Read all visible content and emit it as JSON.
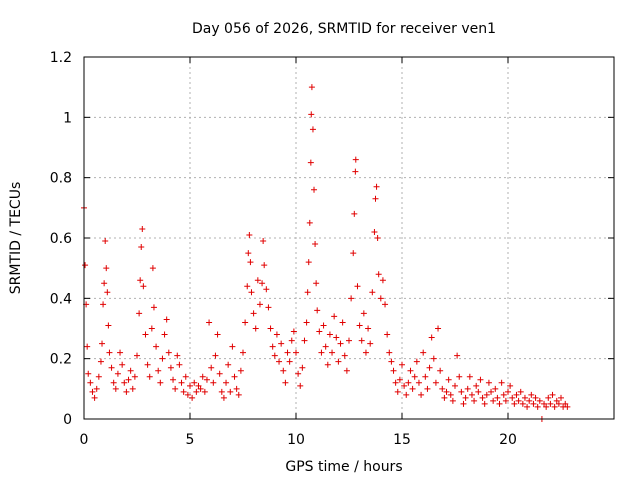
{
  "chart_data": {
    "type": "scatter",
    "title": "Day 056 of 2026, SRMTID for receiver ven1",
    "xlabel": "GPS time / hours",
    "ylabel": "SRMTID / TECUs",
    "xlim": [
      0,
      25
    ],
    "ylim": [
      0,
      1.2
    ],
    "xticks": [
      0,
      5,
      10,
      15,
      20
    ],
    "xtick_labels": [
      "0",
      "5",
      "10",
      "15",
      "20"
    ],
    "yticks": [
      0,
      0.2,
      0.4,
      0.6,
      0.8,
      1,
      1.2
    ],
    "ytick_labels": [
      "0",
      "0.2",
      "0.4",
      "0.6",
      "0.8",
      "1",
      "1.2"
    ],
    "grid": true,
    "marker": "plus",
    "series": [
      {
        "name": "SRMTID",
        "color": "#e00000",
        "points": [
          [
            0.0,
            0.7
          ],
          [
            0.05,
            0.51
          ],
          [
            0.1,
            0.38
          ],
          [
            0.15,
            0.24
          ],
          [
            0.2,
            0.15
          ],
          [
            0.3,
            0.12
          ],
          [
            0.4,
            0.09
          ],
          [
            0.5,
            0.07
          ],
          [
            0.6,
            0.1
          ],
          [
            0.7,
            0.14
          ],
          [
            0.8,
            0.19
          ],
          [
            0.85,
            0.25
          ],
          [
            0.9,
            0.38
          ],
          [
            0.95,
            0.45
          ],
          [
            1.0,
            0.59
          ],
          [
            1.05,
            0.5
          ],
          [
            1.1,
            0.42
          ],
          [
            1.15,
            0.31
          ],
          [
            1.2,
            0.22
          ],
          [
            1.3,
            0.17
          ],
          [
            1.4,
            0.12
          ],
          [
            1.5,
            0.1
          ],
          [
            1.6,
            0.15
          ],
          [
            1.7,
            0.22
          ],
          [
            1.8,
            0.18
          ],
          [
            1.9,
            0.12
          ],
          [
            2.0,
            0.09
          ],
          [
            2.1,
            0.13
          ],
          [
            2.2,
            0.16
          ],
          [
            2.3,
            0.1
          ],
          [
            2.4,
            0.14
          ],
          [
            2.5,
            0.21
          ],
          [
            2.6,
            0.35
          ],
          [
            2.65,
            0.46
          ],
          [
            2.7,
            0.57
          ],
          [
            2.75,
            0.63
          ],
          [
            2.8,
            0.44
          ],
          [
            2.9,
            0.28
          ],
          [
            3.0,
            0.18
          ],
          [
            3.1,
            0.14
          ],
          [
            3.2,
            0.3
          ],
          [
            3.25,
            0.5
          ],
          [
            3.3,
            0.37
          ],
          [
            3.4,
            0.24
          ],
          [
            3.5,
            0.16
          ],
          [
            3.6,
            0.12
          ],
          [
            3.7,
            0.2
          ],
          [
            3.8,
            0.28
          ],
          [
            3.9,
            0.33
          ],
          [
            4.0,
            0.22
          ],
          [
            4.1,
            0.17
          ],
          [
            4.2,
            0.13
          ],
          [
            4.3,
            0.1
          ],
          [
            4.4,
            0.21
          ],
          [
            4.5,
            0.18
          ],
          [
            4.6,
            0.12
          ],
          [
            4.7,
            0.09
          ],
          [
            4.8,
            0.14
          ],
          [
            4.9,
            0.08
          ],
          [
            5.0,
            0.11
          ],
          [
            5.1,
            0.07
          ],
          [
            5.2,
            0.12
          ],
          [
            5.3,
            0.09
          ],
          [
            5.4,
            0.11
          ],
          [
            5.5,
            0.1
          ],
          [
            5.6,
            0.14
          ],
          [
            5.7,
            0.09
          ],
          [
            5.8,
            0.13
          ],
          [
            5.9,
            0.32
          ],
          [
            6.0,
            0.17
          ],
          [
            6.1,
            0.12
          ],
          [
            6.2,
            0.21
          ],
          [
            6.3,
            0.28
          ],
          [
            6.4,
            0.15
          ],
          [
            6.5,
            0.09
          ],
          [
            6.6,
            0.07
          ],
          [
            6.7,
            0.12
          ],
          [
            6.8,
            0.18
          ],
          [
            6.9,
            0.09
          ],
          [
            7.0,
            0.24
          ],
          [
            7.1,
            0.14
          ],
          [
            7.2,
            0.1
          ],
          [
            7.3,
            0.08
          ],
          [
            7.4,
            0.16
          ],
          [
            7.5,
            0.22
          ],
          [
            7.6,
            0.32
          ],
          [
            7.7,
            0.44
          ],
          [
            7.75,
            0.55
          ],
          [
            7.8,
            0.61
          ],
          [
            7.85,
            0.52
          ],
          [
            7.9,
            0.42
          ],
          [
            8.0,
            0.35
          ],
          [
            8.1,
            0.3
          ],
          [
            8.2,
            0.46
          ],
          [
            8.3,
            0.38
          ],
          [
            8.4,
            0.45
          ],
          [
            8.45,
            0.59
          ],
          [
            8.5,
            0.51
          ],
          [
            8.6,
            0.43
          ],
          [
            8.7,
            0.37
          ],
          [
            8.8,
            0.3
          ],
          [
            8.9,
            0.24
          ],
          [
            9.0,
            0.21
          ],
          [
            9.1,
            0.28
          ],
          [
            9.2,
            0.19
          ],
          [
            9.3,
            0.25
          ],
          [
            9.4,
            0.16
          ],
          [
            9.5,
            0.12
          ],
          [
            9.6,
            0.22
          ],
          [
            9.7,
            0.19
          ],
          [
            9.8,
            0.26
          ],
          [
            9.9,
            0.29
          ],
          [
            10.0,
            0.22
          ],
          [
            10.1,
            0.15
          ],
          [
            10.2,
            0.11
          ],
          [
            10.3,
            0.17
          ],
          [
            10.4,
            0.26
          ],
          [
            10.5,
            0.32
          ],
          [
            10.55,
            0.42
          ],
          [
            10.6,
            0.52
          ],
          [
            10.65,
            0.65
          ],
          [
            10.7,
            0.85
          ],
          [
            10.72,
            1.01
          ],
          [
            10.75,
            1.1
          ],
          [
            10.8,
            0.96
          ],
          [
            10.85,
            0.76
          ],
          [
            10.9,
            0.58
          ],
          [
            10.95,
            0.45
          ],
          [
            11.0,
            0.36
          ],
          [
            11.1,
            0.29
          ],
          [
            11.2,
            0.22
          ],
          [
            11.3,
            0.31
          ],
          [
            11.4,
            0.24
          ],
          [
            11.5,
            0.18
          ],
          [
            11.6,
            0.28
          ],
          [
            11.7,
            0.22
          ],
          [
            11.8,
            0.34
          ],
          [
            11.9,
            0.27
          ],
          [
            12.0,
            0.19
          ],
          [
            12.1,
            0.25
          ],
          [
            12.2,
            0.32
          ],
          [
            12.3,
            0.21
          ],
          [
            12.4,
            0.16
          ],
          [
            12.5,
            0.26
          ],
          [
            12.6,
            0.4
          ],
          [
            12.7,
            0.55
          ],
          [
            12.75,
            0.68
          ],
          [
            12.8,
            0.82
          ],
          [
            12.82,
            0.86
          ],
          [
            12.9,
            0.44
          ],
          [
            13.0,
            0.31
          ],
          [
            13.1,
            0.26
          ],
          [
            13.2,
            0.35
          ],
          [
            13.3,
            0.22
          ],
          [
            13.4,
            0.3
          ],
          [
            13.5,
            0.25
          ],
          [
            13.6,
            0.42
          ],
          [
            13.7,
            0.62
          ],
          [
            13.75,
            0.73
          ],
          [
            13.8,
            0.77
          ],
          [
            13.85,
            0.6
          ],
          [
            13.9,
            0.48
          ],
          [
            14.0,
            0.4
          ],
          [
            14.1,
            0.46
          ],
          [
            14.2,
            0.38
          ],
          [
            14.3,
            0.28
          ],
          [
            14.4,
            0.22
          ],
          [
            14.5,
            0.19
          ],
          [
            14.6,
            0.16
          ],
          [
            14.7,
            0.12
          ],
          [
            14.8,
            0.09
          ],
          [
            14.9,
            0.13
          ],
          [
            15.0,
            0.18
          ],
          [
            15.1,
            0.11
          ],
          [
            15.2,
            0.08
          ],
          [
            15.3,
            0.12
          ],
          [
            15.4,
            0.16
          ],
          [
            15.5,
            0.1
          ],
          [
            15.6,
            0.14
          ],
          [
            15.7,
            0.19
          ],
          [
            15.8,
            0.12
          ],
          [
            15.9,
            0.08
          ],
          [
            16.0,
            0.22
          ],
          [
            16.1,
            0.14
          ],
          [
            16.2,
            0.1
          ],
          [
            16.3,
            0.17
          ],
          [
            16.4,
            0.27
          ],
          [
            16.5,
            0.2
          ],
          [
            16.6,
            0.12
          ],
          [
            16.7,
            0.3
          ],
          [
            16.8,
            0.16
          ],
          [
            16.9,
            0.1
          ],
          [
            17.0,
            0.07
          ],
          [
            17.1,
            0.09
          ],
          [
            17.2,
            0.13
          ],
          [
            17.3,
            0.08
          ],
          [
            17.4,
            0.06
          ],
          [
            17.5,
            0.11
          ],
          [
            17.6,
            0.21
          ],
          [
            17.7,
            0.14
          ],
          [
            17.8,
            0.09
          ],
          [
            17.9,
            0.05
          ],
          [
            18.0,
            0.07
          ],
          [
            18.1,
            0.1
          ],
          [
            18.2,
            0.14
          ],
          [
            18.3,
            0.08
          ],
          [
            18.4,
            0.06
          ],
          [
            18.5,
            0.11
          ],
          [
            18.6,
            0.09
          ],
          [
            18.7,
            0.13
          ],
          [
            18.8,
            0.07
          ],
          [
            18.9,
            0.05
          ],
          [
            19.0,
            0.08
          ],
          [
            19.1,
            0.12
          ],
          [
            19.2,
            0.09
          ],
          [
            19.3,
            0.06
          ],
          [
            19.4,
            0.1
          ],
          [
            19.5,
            0.07
          ],
          [
            19.6,
            0.05
          ],
          [
            19.7,
            0.12
          ],
          [
            19.8,
            0.08
          ],
          [
            19.9,
            0.06
          ],
          [
            20.0,
            0.09
          ],
          [
            20.1,
            0.11
          ],
          [
            20.2,
            0.07
          ],
          [
            20.3,
            0.05
          ],
          [
            20.4,
            0.08
          ],
          [
            20.5,
            0.06
          ],
          [
            20.6,
            0.09
          ],
          [
            20.7,
            0.05
          ],
          [
            20.8,
            0.07
          ],
          [
            20.9,
            0.04
          ],
          [
            21.0,
            0.06
          ],
          [
            21.1,
            0.08
          ],
          [
            21.2,
            0.05
          ],
          [
            21.3,
            0.07
          ],
          [
            21.4,
            0.04
          ],
          [
            21.5,
            0.06
          ],
          [
            21.6,
            0.0
          ],
          [
            21.7,
            0.05
          ],
          [
            21.8,
            0.04
          ],
          [
            21.9,
            0.07
          ],
          [
            22.0,
            0.05
          ],
          [
            22.1,
            0.08
          ],
          [
            22.2,
            0.04
          ],
          [
            22.3,
            0.06
          ],
          [
            22.4,
            0.05
          ],
          [
            22.5,
            0.07
          ],
          [
            22.6,
            0.04
          ],
          [
            22.7,
            0.05
          ],
          [
            22.8,
            0.04
          ]
        ]
      }
    ]
  }
}
